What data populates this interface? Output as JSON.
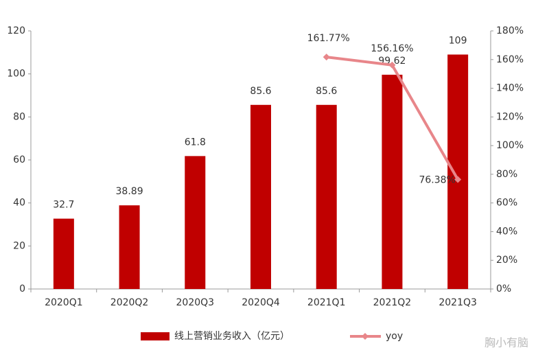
{
  "chart_data": {
    "type": "bar",
    "categories": [
      "2020Q1",
      "2020Q2",
      "2020Q3",
      "2020Q4",
      "2021Q1",
      "2021Q2",
      "2021Q3"
    ],
    "series": [
      {
        "name": "线上营销业务收入（亿元）",
        "type": "bar",
        "color": "#c00000",
        "values": [
          32.7,
          38.89,
          61.8,
          85.6,
          85.6,
          99.62,
          109
        ]
      },
      {
        "name": "yoy",
        "type": "line",
        "axis": "y2",
        "color": "#e8868a",
        "values": [
          null,
          null,
          null,
          null,
          161.77,
          156.16,
          76.38
        ],
        "value_labels": [
          null,
          null,
          null,
          null,
          "161.77%",
          "156.16%",
          "76.38%"
        ]
      }
    ],
    "ylim": [
      0,
      120
    ],
    "yticks": [
      0,
      20,
      40,
      60,
      80,
      100,
      120
    ],
    "y2lim": [
      0,
      180
    ],
    "y2ticks": [
      {
        "value": 0,
        "label": "0%"
      },
      {
        "value": 20,
        "label": "20%"
      },
      {
        "value": 40,
        "label": "40%"
      },
      {
        "value": 60,
        "label": "60%"
      },
      {
        "value": 80,
        "label": "80%"
      },
      {
        "value": 100,
        "label": "100%"
      },
      {
        "value": 120,
        "label": "120%"
      },
      {
        "value": 140,
        "label": "140%"
      },
      {
        "value": 160,
        "label": "160%"
      },
      {
        "value": 180,
        "label": "180%"
      }
    ],
    "legend_position": "bottom",
    "watermark": "胸小有脑"
  }
}
